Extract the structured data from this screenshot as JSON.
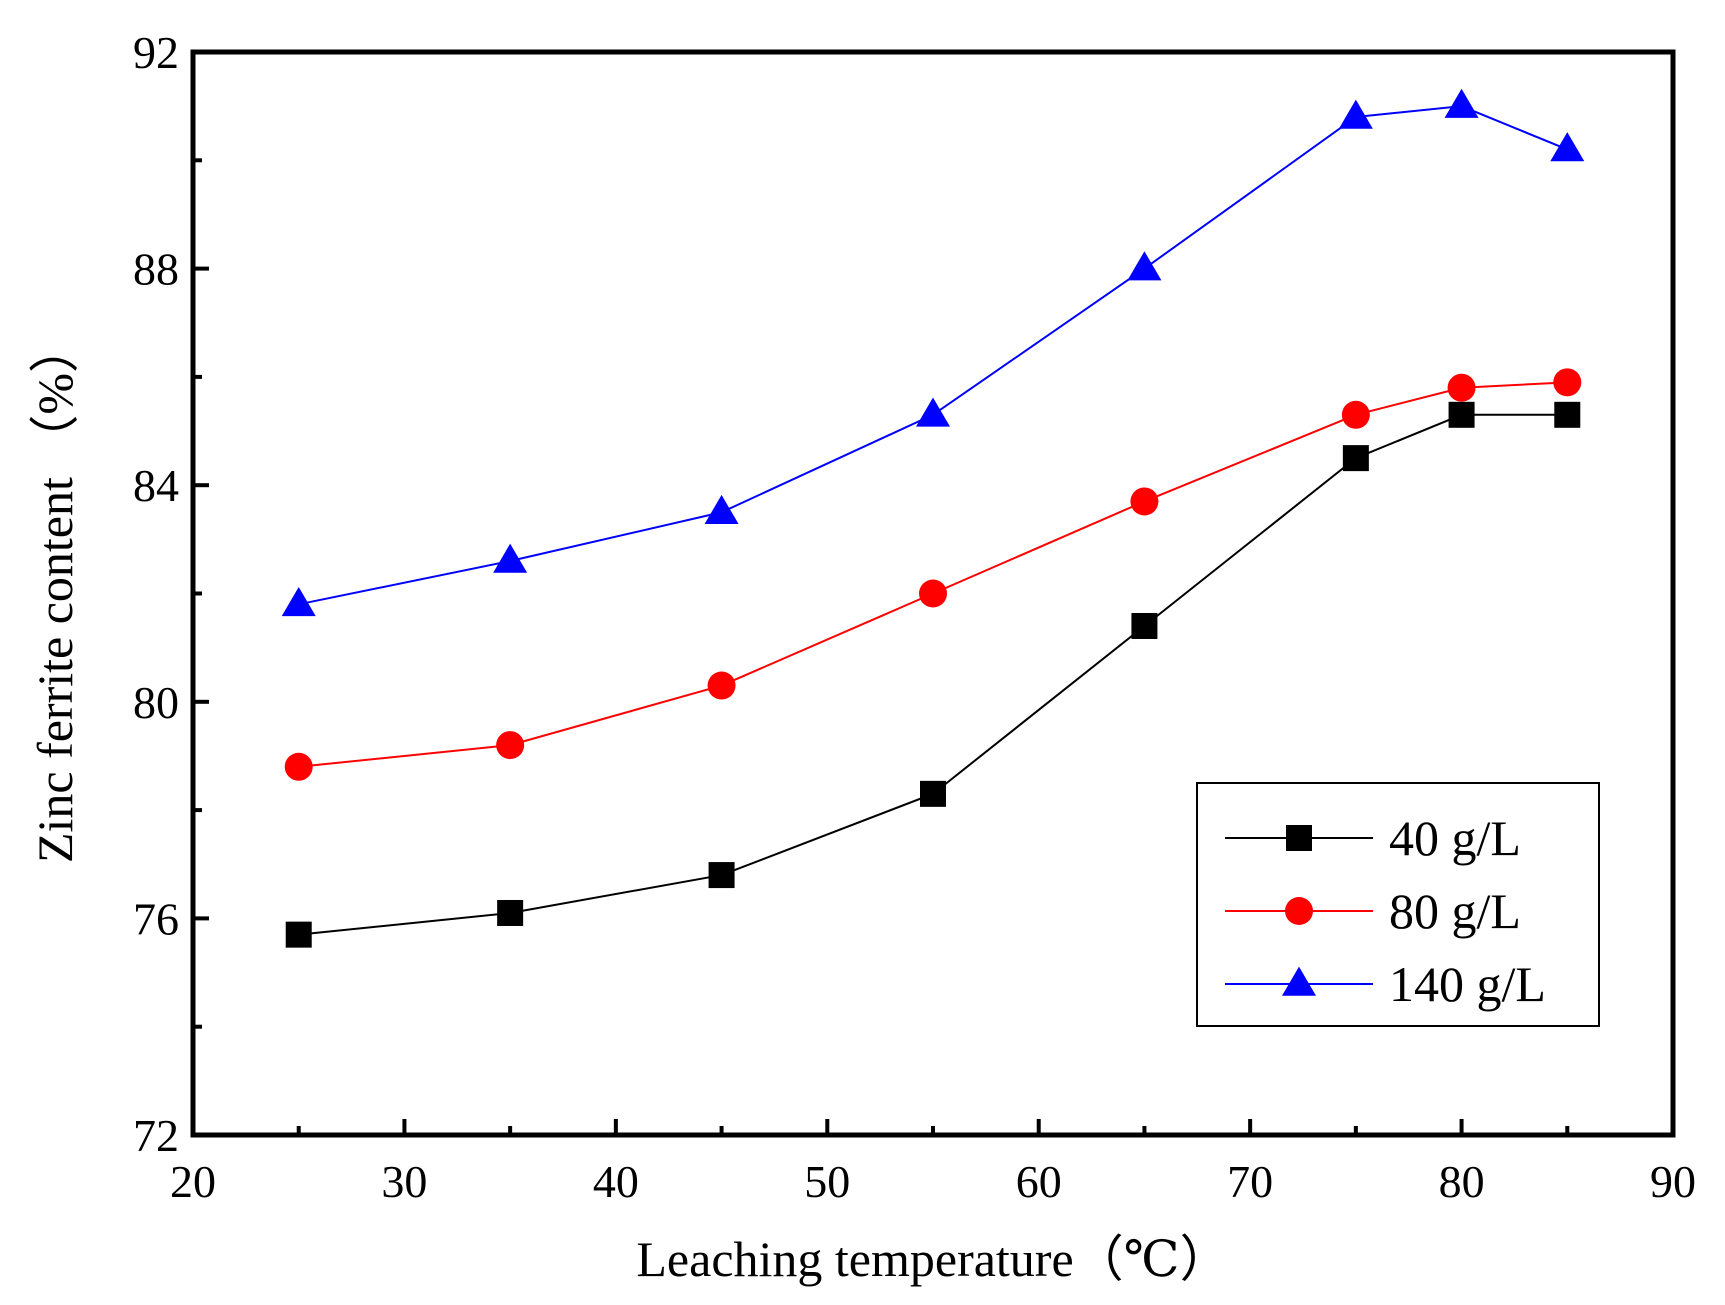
{
  "chart_data": {
    "type": "line",
    "title": "",
    "xlabel": "Leaching temperature（℃）",
    "ylabel": "Zinc ferrite content （%）",
    "xlim": [
      20,
      90
    ],
    "ylim": [
      72,
      92
    ],
    "xticks": [
      20,
      30,
      40,
      50,
      60,
      70,
      80,
      90
    ],
    "yticks": [
      72,
      76,
      80,
      84,
      88,
      92
    ],
    "x": [
      25,
      35,
      45,
      55,
      65,
      75,
      80,
      85
    ],
    "grid": false,
    "legend_position": "bottom-right",
    "series": [
      {
        "name": "40 g/L",
        "marker": "square",
        "color": "#000000",
        "values": [
          75.7,
          76.1,
          76.8,
          78.3,
          81.4,
          84.5,
          85.3,
          85.3
        ]
      },
      {
        "name": "80 g/L",
        "marker": "circle",
        "color": "#ff0000",
        "values": [
          78.8,
          79.2,
          80.3,
          82.0,
          83.7,
          85.3,
          85.8,
          85.9
        ]
      },
      {
        "name": "140 g/L",
        "marker": "triangle",
        "color": "#0000ff",
        "values": [
          81.8,
          82.6,
          83.5,
          85.3,
          88.0,
          90.8,
          91.0,
          90.2
        ]
      }
    ]
  }
}
